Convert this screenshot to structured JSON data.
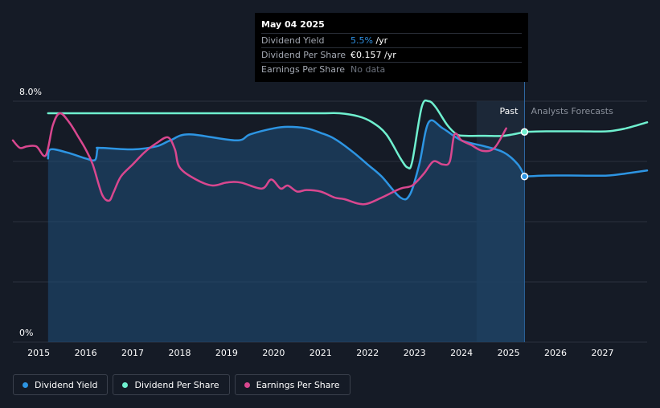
{
  "tooltip": {
    "date": "May 04 2025",
    "rows": [
      {
        "label": "Dividend Yield",
        "value": "5.5%",
        "unit": " /yr"
      },
      {
        "label": "Dividend Per Share",
        "value": "€0.157",
        "unit": " /yr"
      },
      {
        "label": "Earnings Per Share",
        "value": "No data",
        "unit": ""
      }
    ]
  },
  "regions": {
    "past": "Past",
    "forecast": "Analysts Forecasts"
  },
  "legend": [
    {
      "label": "Dividend Yield",
      "color": "#2d95e3"
    },
    {
      "label": "Dividend Per Share",
      "color": "#6ff0cf"
    },
    {
      "label": "Earnings Per Share",
      "color": "#d9478f"
    }
  ],
  "chart_data": {
    "type": "line",
    "xlim": [
      2014.45,
      2027.95
    ],
    "ylim": [
      0,
      8.0
    ],
    "ytick_labels": [
      "8.0%",
      "0%"
    ],
    "xticks": [
      2015,
      2016,
      2017,
      2018,
      2019,
      2020,
      2021,
      2022,
      2023,
      2024,
      2025,
      2026,
      2027
    ],
    "xtick_labels": [
      "2015",
      "2016",
      "2017",
      "2018",
      "2019",
      "2020",
      "2021",
      "2022",
      "2023",
      "2024",
      "2025",
      "2026",
      "2027"
    ],
    "grid": true,
    "past_end": 2025.34,
    "shade_start": 2024.32,
    "series": [
      {
        "name": "Dividend Yield",
        "color": "#2d95e3",
        "fill": true,
        "x": [
          2015.2,
          2015.25,
          2015.6,
          2016.0,
          2016.2,
          2016.25,
          2016.3,
          2017.0,
          2017.5,
          2017.8,
          2018.2,
          2019.2,
          2019.5,
          2020.0,
          2020.3,
          2020.7,
          2021.0,
          2021.3,
          2021.7,
          2022.0,
          2022.3,
          2022.7,
          2022.9,
          2023.1,
          2023.3,
          2023.6,
          2024.0,
          2024.5,
          2024.9,
          2025.2,
          2025.34
        ],
        "y": [
          6.1,
          6.4,
          6.3,
          6.1,
          6.05,
          6.4,
          6.45,
          6.4,
          6.5,
          6.7,
          6.9,
          6.7,
          6.9,
          7.1,
          7.15,
          7.1,
          6.95,
          6.75,
          6.3,
          5.9,
          5.5,
          4.8,
          4.9,
          5.9,
          7.3,
          7.1,
          6.7,
          6.5,
          6.3,
          5.9,
          5.5
        ],
        "forecast_x": [
          2025.34,
          2025.8,
          2026.5,
          2027.1,
          2027.5,
          2027.95
        ],
        "forecast_y": [
          5.5,
          5.53,
          5.53,
          5.53,
          5.6,
          5.7
        ]
      },
      {
        "name": "Dividend Per Share",
        "color": "#6ff0cf",
        "fill": false,
        "x": [
          2015.2,
          2016.0,
          2017.0,
          2018.0,
          2019.0,
          2020.0,
          2021.0,
          2021.4,
          2021.8,
          2022.1,
          2022.4,
          2022.7,
          2022.85,
          2022.95,
          2023.15,
          2023.3,
          2023.45,
          2023.7,
          2023.9,
          2024.1,
          2024.5,
          2024.9,
          2025.34
        ],
        "y": [
          7.6,
          7.6,
          7.6,
          7.6,
          7.6,
          7.6,
          7.6,
          7.6,
          7.5,
          7.3,
          6.9,
          6.1,
          5.8,
          6.0,
          7.8,
          8.0,
          7.8,
          7.2,
          6.9,
          6.85,
          6.85,
          6.85,
          6.98
        ],
        "forecast_x": [
          2025.34,
          2025.8,
          2026.5,
          2027.1,
          2027.5,
          2027.95
        ],
        "forecast_y": [
          6.98,
          7.0,
          7.0,
          7.0,
          7.1,
          7.3
        ]
      },
      {
        "name": "Earnings Per Share",
        "color": "#d9478f",
        "fill": false,
        "x": [
          2014.45,
          2014.6,
          2014.75,
          2014.95,
          2015.15,
          2015.3,
          2015.45,
          2015.65,
          2015.85,
          2016.0,
          2016.15,
          2016.35,
          2016.5,
          2016.6,
          2016.75,
          2017.0,
          2017.25,
          2017.5,
          2017.75,
          2017.9,
          2018.0,
          2018.35,
          2018.7,
          2019.0,
          2019.3,
          2019.75,
          2019.95,
          2020.15,
          2020.3,
          2020.5,
          2020.7,
          2021.0,
          2021.3,
          2021.5,
          2021.8,
          2022.0,
          2022.3,
          2022.7,
          2022.95,
          2023.2,
          2023.4,
          2023.6,
          2023.75,
          2023.85,
          2024.0,
          2024.2,
          2024.45,
          2024.7,
          2024.95
        ],
        "y": [
          6.7,
          6.45,
          6.5,
          6.5,
          6.2,
          7.2,
          7.6,
          7.3,
          6.8,
          6.4,
          5.9,
          4.9,
          4.7,
          5.0,
          5.5,
          5.9,
          6.3,
          6.6,
          6.8,
          6.4,
          5.8,
          5.4,
          5.2,
          5.3,
          5.3,
          5.1,
          5.4,
          5.1,
          5.2,
          5.0,
          5.05,
          5.0,
          4.8,
          4.75,
          4.6,
          4.6,
          4.8,
          5.1,
          5.2,
          5.6,
          6.0,
          5.9,
          6.0,
          6.9,
          6.7,
          6.55,
          6.35,
          6.45,
          7.1
        ]
      }
    ]
  }
}
